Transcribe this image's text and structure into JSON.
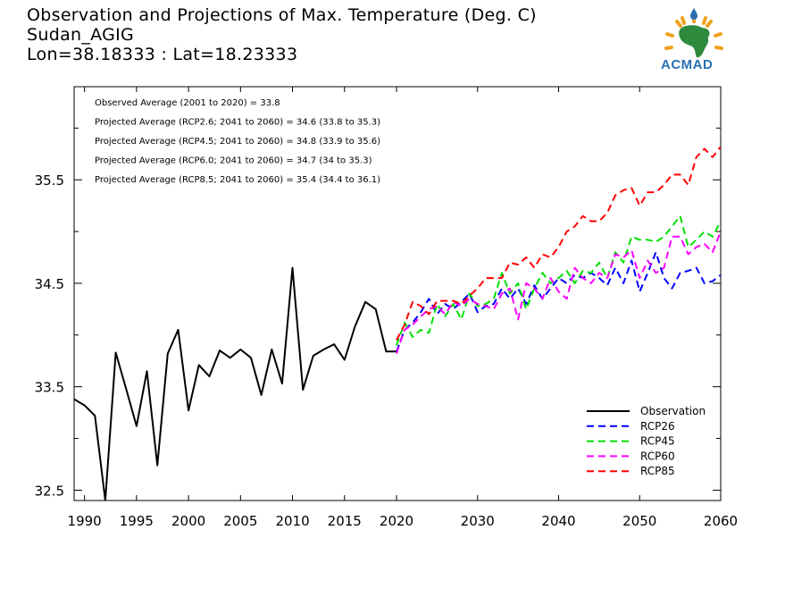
{
  "title_lines": [
    "Observation and Projections of Max. Temperature (Deg. C)",
    "Sudan_AGIG",
    "Lon=38.18333 : Lat=18.23333"
  ],
  "logo": {
    "text": "ACMAD",
    "colors": {
      "africa": "#2e8b3e",
      "rays": "#f0a21c",
      "drop": "#2a6fb4",
      "text": "#2a6fb4"
    }
  },
  "chart_data": {
    "type": "line",
    "xlim": [
      1989,
      2060
    ],
    "ylim": [
      32.4,
      36.4
    ],
    "x_ticks": [
      1990,
      1995,
      2000,
      2005,
      2010,
      2015,
      2020,
      2030,
      2040,
      2050,
      2060
    ],
    "y_ticks": [
      32.5,
      33.5,
      34.5,
      35.5
    ],
    "y_minor_ticks": [
      33.0,
      34.0,
      35.0,
      36.0
    ],
    "annotations": [
      "Observed Average (2001 to 2020) = 33.8",
      "Projected Average (RCP2.6; 2041 to 2060) = 34.6 (33.8 to 35.3)",
      "Projected Average (RCP4.5; 2041 to 2060) = 34.8 (33.9 to 35.6)",
      "Projected Average (RCP6.0; 2041 to 2060) = 34.7 (34 to 35.3)",
      "Projected Average (RCP8.5; 2041 to 2060) = 35.4 (34.4 to 36.1)"
    ],
    "legend_position": "bottom-right",
    "series": [
      {
        "name": "Observation",
        "color": "#000000",
        "dashed": false,
        "x": [
          1989,
          1990,
          1991,
          1992,
          1993,
          1994,
          1995,
          1996,
          1997,
          1998,
          1999,
          2000,
          2001,
          2002,
          2003,
          2004,
          2005,
          2006,
          2007,
          2008,
          2009,
          2010,
          2011,
          2012,
          2013,
          2014,
          2015,
          2016,
          2017,
          2018,
          2019,
          2020
        ],
        "values": [
          33.38,
          33.32,
          33.22,
          32.4,
          33.83,
          33.48,
          33.12,
          33.65,
          32.74,
          33.82,
          34.05,
          33.27,
          33.71,
          33.6,
          33.85,
          33.78,
          33.86,
          33.78,
          33.42,
          33.86,
          33.53,
          34.65,
          33.47,
          33.8,
          33.86,
          33.91,
          33.76,
          34.08,
          34.32,
          34.25,
          33.84,
          33.84
        ]
      },
      {
        "name": "RCP26",
        "color": "#0000ff",
        "dashed": true,
        "x": [
          2020,
          2021,
          2022,
          2023,
          2024,
          2025,
          2026,
          2027,
          2028,
          2029,
          2030,
          2031,
          2032,
          2033,
          2034,
          2035,
          2036,
          2037,
          2038,
          2039,
          2040,
          2041,
          2042,
          2043,
          2044,
          2045,
          2046,
          2047,
          2048,
          2049,
          2050,
          2051,
          2052,
          2053,
          2054,
          2055,
          2056,
          2057,
          2058,
          2059,
          2060
        ],
        "values": [
          33.84,
          34.05,
          34.12,
          34.22,
          34.35,
          34.2,
          34.3,
          34.25,
          34.32,
          34.4,
          34.22,
          34.28,
          34.3,
          34.45,
          34.35,
          34.45,
          34.3,
          34.48,
          34.35,
          34.45,
          34.55,
          34.5,
          34.58,
          34.55,
          34.6,
          34.55,
          34.48,
          34.65,
          34.5,
          34.72,
          34.42,
          34.6,
          34.8,
          34.55,
          34.45,
          34.6,
          34.62,
          34.65,
          34.5,
          34.52,
          34.58
        ]
      },
      {
        "name": "RCP45",
        "color": "#00e000",
        "dashed": true,
        "x": [
          2020,
          2021,
          2022,
          2023,
          2024,
          2025,
          2026,
          2027,
          2028,
          2029,
          2030,
          2031,
          2032,
          2033,
          2034,
          2035,
          2036,
          2037,
          2038,
          2039,
          2040,
          2041,
          2042,
          2043,
          2044,
          2045,
          2046,
          2047,
          2048,
          2049,
          2050,
          2051,
          2052,
          2053,
          2054,
          2055,
          2056,
          2057,
          2058,
          2059,
          2060
        ],
        "values": [
          33.9,
          34.12,
          33.98,
          34.05,
          34.02,
          34.3,
          34.18,
          34.3,
          34.15,
          34.4,
          34.28,
          34.3,
          34.35,
          34.6,
          34.4,
          34.5,
          34.25,
          34.45,
          34.6,
          34.5,
          34.55,
          34.62,
          34.5,
          34.62,
          34.6,
          34.7,
          34.55,
          34.8,
          34.7,
          34.95,
          34.92,
          34.92,
          34.9,
          34.95,
          35.05,
          35.15,
          34.85,
          34.92,
          35.0,
          34.95,
          35.1
        ]
      },
      {
        "name": "RCP60",
        "color": "#ff00ff",
        "dashed": true,
        "x": [
          2020,
          2021,
          2022,
          2023,
          2024,
          2025,
          2026,
          2027,
          2028,
          2029,
          2030,
          2031,
          2032,
          2033,
          2034,
          2035,
          2036,
          2037,
          2038,
          2039,
          2040,
          2041,
          2042,
          2043,
          2044,
          2045,
          2046,
          2047,
          2048,
          2049,
          2050,
          2051,
          2052,
          2053,
          2054,
          2055,
          2056,
          2057,
          2058,
          2059,
          2060
        ],
        "values": [
          33.82,
          34.05,
          34.1,
          34.18,
          34.25,
          34.28,
          34.2,
          34.32,
          34.28,
          34.35,
          34.3,
          34.28,
          34.25,
          34.4,
          34.45,
          34.15,
          34.5,
          34.45,
          34.35,
          34.55,
          34.42,
          34.35,
          34.65,
          34.55,
          34.5,
          34.6,
          34.55,
          34.78,
          34.75,
          34.82,
          34.55,
          34.72,
          34.6,
          34.65,
          34.95,
          34.95,
          34.78,
          34.85,
          34.88,
          34.8,
          35.0
        ]
      },
      {
        "name": "RCP85",
        "color": "#ff0000",
        "dashed": true,
        "x": [
          2020,
          2021,
          2022,
          2023,
          2024,
          2025,
          2026,
          2027,
          2028,
          2029,
          2030,
          2031,
          2032,
          2033,
          2034,
          2035,
          2036,
          2037,
          2038,
          2039,
          2040,
          2041,
          2042,
          2043,
          2044,
          2045,
          2046,
          2047,
          2048,
          2049,
          2050,
          2051,
          2052,
          2053,
          2054,
          2055,
          2056,
          2057,
          2058,
          2059,
          2060
        ],
        "values": [
          33.95,
          34.1,
          34.32,
          34.28,
          34.2,
          34.33,
          34.33,
          34.33,
          34.3,
          34.38,
          34.45,
          34.55,
          34.55,
          34.55,
          34.7,
          34.68,
          34.75,
          34.65,
          34.78,
          34.75,
          34.85,
          35.0,
          35.05,
          35.15,
          35.1,
          35.1,
          35.18,
          35.35,
          35.4,
          35.42,
          35.25,
          35.38,
          35.38,
          35.45,
          35.55,
          35.55,
          35.45,
          35.72,
          35.8,
          35.72,
          35.82
        ]
      }
    ]
  }
}
